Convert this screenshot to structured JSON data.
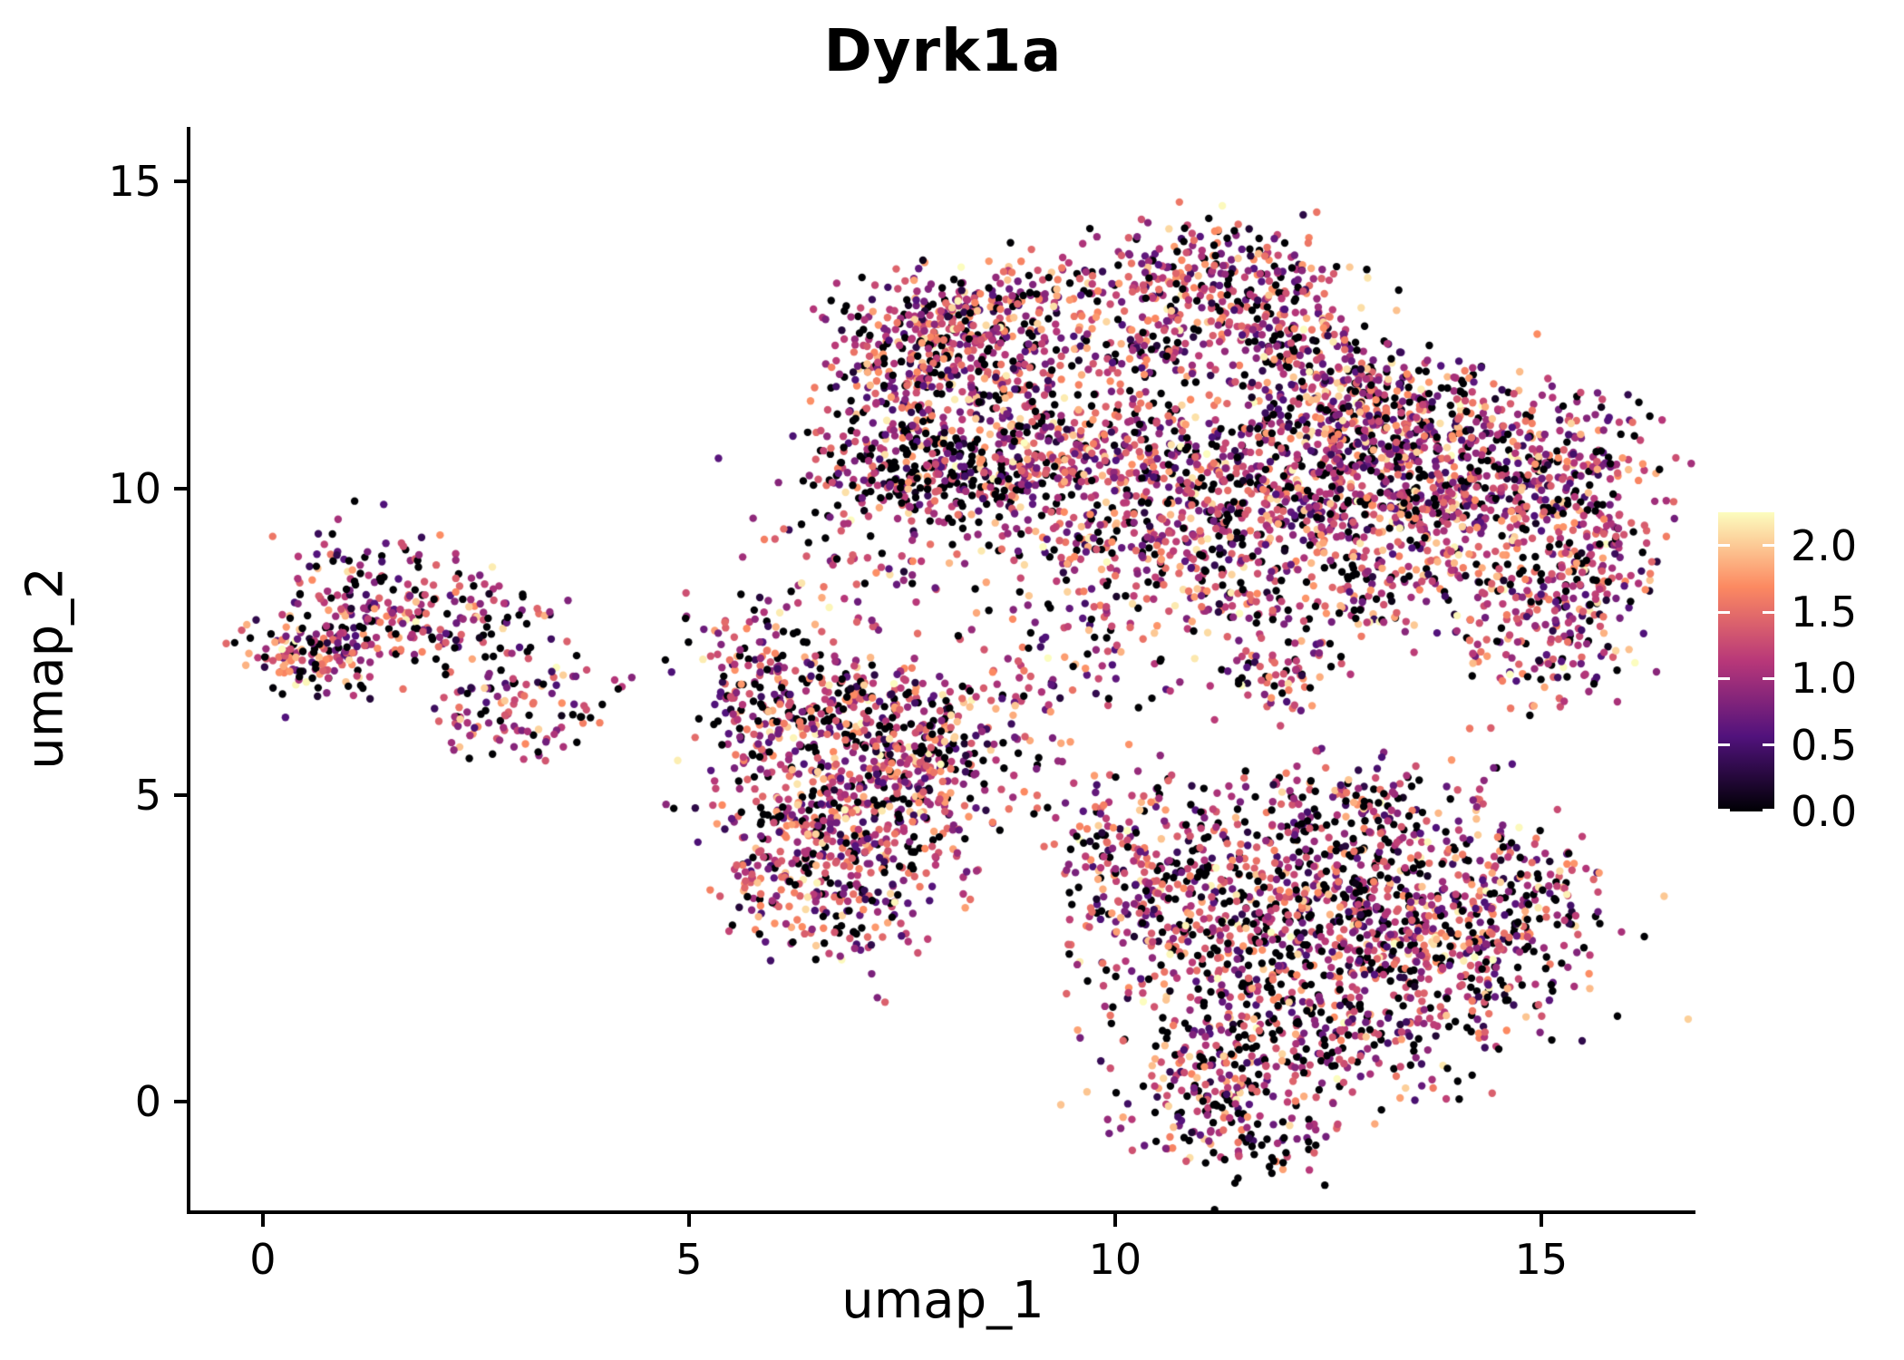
{
  "title": "Dyrk1a",
  "x_axis": {
    "label": "umap_1",
    "tick_labels": [
      "0",
      "5",
      "10",
      "15"
    ],
    "tick_values": [
      0,
      5,
      10,
      15
    ]
  },
  "y_axis": {
    "label": "umap_2",
    "tick_labels": [
      "0",
      "5",
      "10",
      "15"
    ],
    "tick_values": [
      0,
      5,
      10,
      15
    ]
  },
  "colorbar": {
    "tick_labels": [
      "2.0",
      "1.5",
      "1.0",
      "0.5",
      "0.0"
    ],
    "tick_values": [
      2.0,
      1.5,
      1.0,
      0.5,
      0.0
    ],
    "vmin": 0,
    "vmax": 2.25,
    "colormap": "magma"
  },
  "chart_data": {
    "type": "scatter",
    "title": "Dyrk1a",
    "xlabel": "umap_1",
    "ylabel": "umap_2",
    "xlim": [
      -0.85,
      16.81
    ],
    "ylim": [
      -1.77,
      15.89
    ],
    "x_ticks": [
      0,
      5,
      10,
      15
    ],
    "y_ticks": [
      0,
      5,
      10,
      15
    ],
    "grid": false,
    "legend": "continuous colorbar at right, expression value 0.0 to 2.0+",
    "colormap_stops": [
      [
        0.0,
        "#000004"
      ],
      [
        0.25,
        "#51127c"
      ],
      [
        0.5,
        "#b73779"
      ],
      [
        0.75,
        "#fc8961"
      ],
      [
        1.0,
        "#fcfdbf"
      ]
    ],
    "point_radius_px": 4.2,
    "default_zero_fraction": 0.22,
    "value_max": 2.25,
    "seed": 7,
    "clusters_format": [
      "center_x",
      "center_y",
      "sd_x",
      "sd_y",
      "n_points",
      "zero_fraction_optional"
    ],
    "clusters": [
      [
        0.35,
        7.25,
        0.2,
        0.2,
        30
      ],
      [
        0.7,
        7.4,
        0.45,
        0.35,
        130
      ],
      [
        1.4,
        8.3,
        0.5,
        0.5,
        130
      ],
      [
        2.4,
        7.9,
        0.55,
        0.35,
        100
      ],
      [
        2.9,
        6.4,
        0.5,
        0.4,
        110
      ],
      [
        4.3,
        6.9,
        0.12,
        0.1,
        4
      ],
      [
        3.8,
        6.3,
        0.1,
        0.08,
        3
      ],
      [
        5.45,
        6.7,
        0.15,
        0.3,
        20
      ],
      [
        5.8,
        6.9,
        0.35,
        0.7,
        110
      ],
      [
        6.5,
        6.0,
        0.55,
        0.75,
        190
      ],
      [
        7.3,
        6.3,
        0.6,
        0.6,
        170
      ],
      [
        6.4,
        4.6,
        0.55,
        0.6,
        180
      ],
      [
        7.3,
        4.3,
        0.6,
        0.7,
        200
      ],
      [
        7.9,
        5.4,
        0.5,
        0.55,
        120
      ],
      [
        6.1,
        3.6,
        0.4,
        0.45,
        80
      ],
      [
        7.0,
        2.9,
        0.45,
        0.4,
        70
      ],
      [
        8.6,
        6.2,
        0.5,
        0.6,
        70
      ],
      [
        7.0,
        9.0,
        0.7,
        0.5,
        70
      ],
      [
        7.9,
        12.7,
        0.55,
        0.4,
        200
      ],
      [
        8.6,
        12.0,
        0.6,
        0.5,
        180
      ],
      [
        7.6,
        11.7,
        0.5,
        0.5,
        150
      ],
      [
        7.9,
        10.3,
        0.8,
        0.45,
        380,
        0.38
      ],
      [
        9.3,
        10.7,
        0.6,
        0.5,
        150
      ],
      [
        9.0,
        13.2,
        0.4,
        0.3,
        80
      ],
      [
        9.7,
        11.6,
        0.6,
        0.6,
        60
      ],
      [
        11.1,
        13.5,
        0.7,
        0.45,
        230
      ],
      [
        11.9,
        12.6,
        0.55,
        0.5,
        170
      ],
      [
        10.4,
        12.4,
        0.4,
        0.4,
        80
      ],
      [
        12.6,
        11.9,
        0.5,
        0.45,
        120
      ],
      [
        11.0,
        10.1,
        1.0,
        0.7,
        450
      ],
      [
        12.8,
        10.3,
        0.9,
        0.7,
        400
      ],
      [
        14.3,
        9.9,
        0.9,
        0.75,
        450
      ],
      [
        13.3,
        11.3,
        0.9,
        0.45,
        200
      ],
      [
        15.3,
        10.6,
        0.5,
        0.5,
        120
      ],
      [
        10.1,
        8.9,
        0.8,
        0.5,
        150
      ],
      [
        11.5,
        8.3,
        0.9,
        0.45,
        130
      ],
      [
        13.2,
        8.5,
        0.8,
        0.45,
        130
      ],
      [
        11.9,
        7.0,
        0.35,
        0.3,
        70
      ],
      [
        15.1,
        7.6,
        0.55,
        0.6,
        170
      ],
      [
        15.6,
        9.0,
        0.4,
        0.5,
        100
      ],
      [
        9.6,
        7.3,
        0.5,
        0.5,
        50
      ],
      [
        12.3,
        3.6,
        1.0,
        0.8,
        450,
        0.3
      ],
      [
        13.7,
        2.4,
        0.9,
        0.85,
        420,
        0.3
      ],
      [
        11.4,
        2.4,
        0.7,
        0.8,
        250,
        0.35
      ],
      [
        12.4,
        1.0,
        0.8,
        0.6,
        200,
        0.35
      ],
      [
        11.2,
        0.2,
        0.6,
        0.5,
        150,
        0.35
      ],
      [
        10.3,
        3.3,
        0.5,
        0.8,
        150
      ],
      [
        14.8,
        3.3,
        0.5,
        0.6,
        130
      ],
      [
        9.8,
        4.3,
        0.35,
        0.5,
        70
      ],
      [
        11.6,
        -0.7,
        0.5,
        0.3,
        60,
        0.4
      ],
      [
        13.0,
        4.8,
        0.8,
        0.4,
        130
      ]
    ]
  }
}
